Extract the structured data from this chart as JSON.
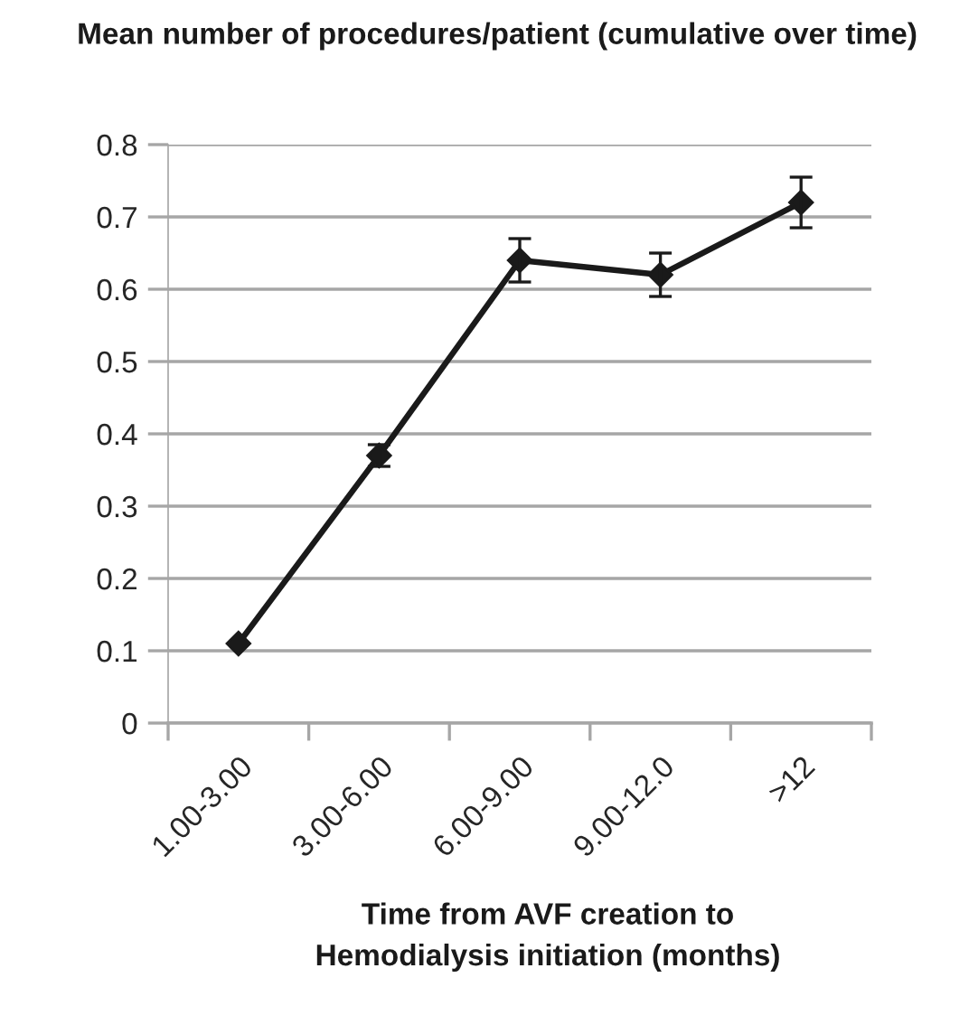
{
  "chart_data": {
    "type": "line",
    "title": "Mean number of procedures/patient (cumulative over time)",
    "xlabel": "Time from AVF creation to\nHemodialysis initiation (months)",
    "categories": [
      "1.00-3.00",
      "3.00-6.00",
      "6.00-9.00",
      "9.00-12.0",
      ">12"
    ],
    "series": [
      {
        "color": "#1a1a1a",
        "values": [
          0.11,
          0.37,
          0.64,
          0.62,
          0.72
        ],
        "errors": [
          null,
          0.015,
          0.03,
          0.03,
          0.035
        ]
      }
    ],
    "ylim": [
      0,
      0.8
    ],
    "yticks": [
      0,
      0.1,
      0.2,
      0.3,
      0.4,
      0.5,
      0.6,
      0.7,
      0.8
    ],
    "grid": "y",
    "marker": "diamond",
    "line_style": "solid"
  }
}
